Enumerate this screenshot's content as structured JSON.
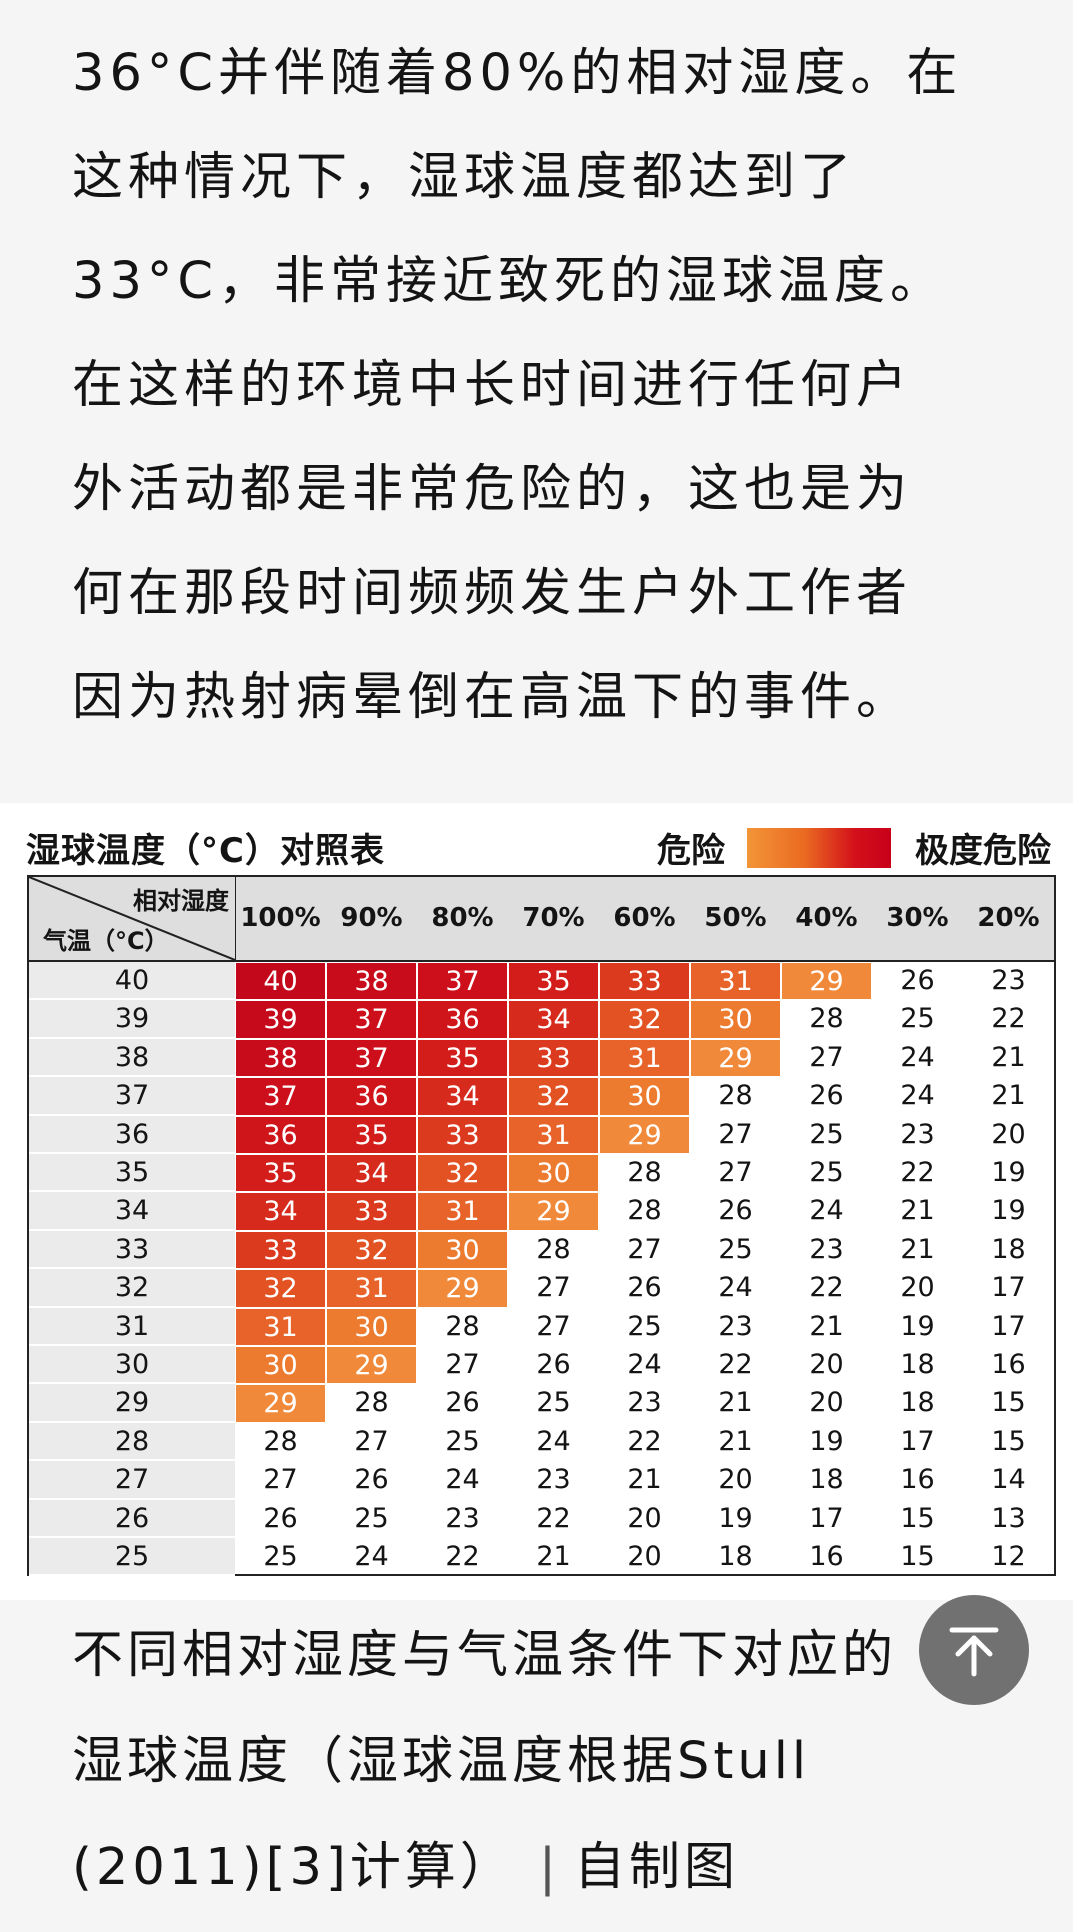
{
  "article": {
    "lines": [
      "36°C并伴随着80%的相对湿度。在",
      "这种情况下，湿球温度都达到了",
      "33°C，非常接近致死的湿球温度。",
      "在这样的环境中长时间进行任何户",
      "外活动都是非常危险的，这也是为",
      "何在那段时间频频发生户外工作者",
      "因为热射病晕倒在高温下的事件。"
    ]
  },
  "figure": {
    "title": "湿球温度（°C）对照表",
    "legend_low": "危险",
    "legend_high": "极度危险",
    "corner_top": "相对湿度",
    "corner_bottom": "气温（°C）"
  },
  "chart_data": {
    "type": "table",
    "title": "湿球温度（°C）对照表",
    "columns": [
      "100%",
      "90%",
      "80%",
      "70%",
      "60%",
      "50%",
      "40%",
      "30%",
      "20%"
    ],
    "row_labels": [
      "40",
      "39",
      "38",
      "37",
      "36",
      "35",
      "34",
      "33",
      "32",
      "31",
      "30",
      "29",
      "28",
      "27",
      "26",
      "25"
    ],
    "values": [
      [
        40,
        38,
        37,
        35,
        33,
        31,
        29,
        26,
        23
      ],
      [
        39,
        37,
        36,
        34,
        32,
        30,
        28,
        25,
        22
      ],
      [
        38,
        37,
        35,
        33,
        31,
        29,
        27,
        24,
        21
      ],
      [
        37,
        36,
        34,
        32,
        30,
        28,
        26,
        24,
        21
      ],
      [
        36,
        35,
        33,
        31,
        29,
        27,
        25,
        23,
        20
      ],
      [
        35,
        34,
        32,
        30,
        28,
        27,
        25,
        22,
        19
      ],
      [
        34,
        33,
        31,
        29,
        28,
        26,
        24,
        21,
        19
      ],
      [
        33,
        32,
        30,
        28,
        27,
        25,
        23,
        21,
        18
      ],
      [
        32,
        31,
        29,
        27,
        26,
        24,
        22,
        20,
        17
      ],
      [
        31,
        30,
        28,
        27,
        25,
        23,
        21,
        19,
        17
      ],
      [
        30,
        29,
        27,
        26,
        24,
        22,
        20,
        18,
        16
      ],
      [
        29,
        28,
        26,
        25,
        23,
        21,
        20,
        18,
        15
      ],
      [
        28,
        27,
        25,
        24,
        22,
        21,
        19,
        17,
        15
      ],
      [
        27,
        26,
        24,
        23,
        21,
        20,
        18,
        16,
        14
      ],
      [
        26,
        25,
        23,
        22,
        20,
        19,
        17,
        15,
        13
      ],
      [
        25,
        24,
        22,
        21,
        20,
        18,
        16,
        15,
        12
      ]
    ],
    "highlight_threshold": 29,
    "colors": {
      "29": "#f0893a",
      "30": "#ec7b30",
      "31": "#e8632a",
      "32": "#e35223",
      "33": "#dc3a1f",
      "34": "#d62a1c",
      "35": "#d21d1a",
      "36": "#cf141a",
      "37": "#cc0f1b",
      "38": "#c80c1b",
      "39": "#c60a1b",
      "40": "#c4081b"
    }
  },
  "caption": {
    "line1": "不同相对湿度与气温条件下对应的",
    "line2": "湿球温度（湿球温度根据Stull",
    "line3_source": "(2011)[3]计算）",
    "line3_sep": "|",
    "line3_credit": "自制图"
  },
  "back_to_top": {
    "icon": "back-to-top-icon"
  }
}
